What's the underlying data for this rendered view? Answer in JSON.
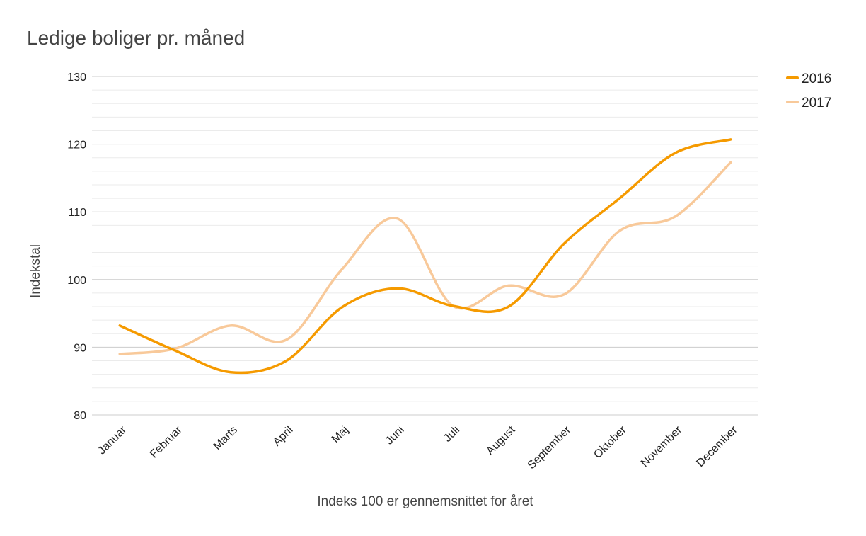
{
  "chart_data": {
    "type": "line",
    "title": "Ledige boliger pr. måned",
    "xlabel": "Indeks 100 er gennemsnittet for året",
    "ylabel": "Indekstal",
    "categories": [
      "Januar",
      "Februar",
      "Marts",
      "April",
      "Maj",
      "Juni",
      "Juli",
      "August",
      "September",
      "Oktober",
      "November",
      "December"
    ],
    "ylim": [
      80,
      130
    ],
    "yticks": [
      80,
      90,
      100,
      110,
      120,
      130
    ],
    "minor_gridlines": true,
    "legend_position": "top-right",
    "smooth": true,
    "series": [
      {
        "name": "2016",
        "color": "#f59a00",
        "values": [
          93.2,
          89.5,
          86.3,
          88.0,
          95.9,
          98.7,
          96.1,
          96.0,
          105.3,
          112.0,
          118.7,
          120.7
        ]
      },
      {
        "name": "2017",
        "color": "#f8c99a",
        "values": [
          89.0,
          89.8,
          93.2,
          91.1,
          101.5,
          109.0,
          96.1,
          99.1,
          97.8,
          107.2,
          109.3,
          117.3
        ]
      }
    ]
  }
}
